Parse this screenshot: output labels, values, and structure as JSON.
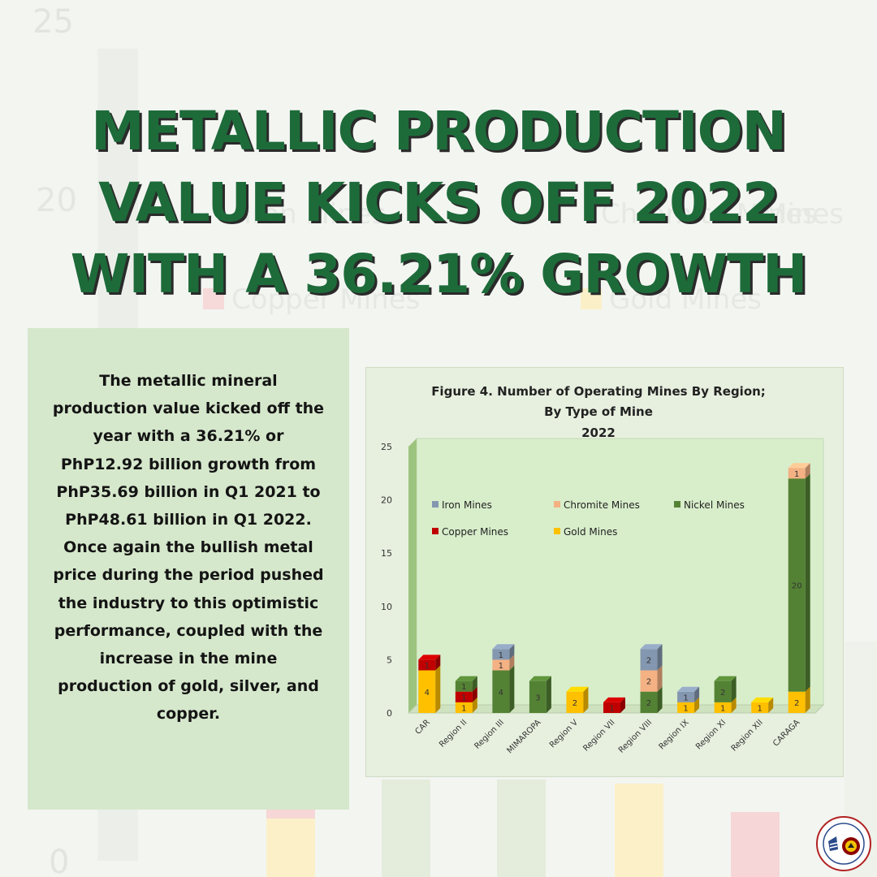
{
  "headline": {
    "line1": "METALLIC PRODUCTION",
    "line2": "VALUE KICKS OFF 2022",
    "line3": "WITH A 36.21% GROWTH"
  },
  "body_text": "The metallic mineral production value kicked off the year with a 36.21% or PhP12.92 billion growth from PhP35.69 billion in Q1 2021 to PhP48.61 billion in Q1 2022. Once again the bullish metal price during the period pushed the industry to this optimistic performance, coupled with the increase in the mine production of gold, silver, and copper.",
  "logo": {
    "icon": "government-seal-icon"
  },
  "chart_data": {
    "type": "bar",
    "stacked": true,
    "title_lines": [
      "Figure 4. Number of Operating Mines By Region;",
      "By Type of Mine",
      "2022"
    ],
    "categories": [
      "CAR",
      "Region II",
      "Region III",
      "MIMAROPA",
      "Region V",
      "Region VII",
      "Region VIII",
      "Region IX",
      "Region XI",
      "Region XII",
      "CARAGA"
    ],
    "ylim": [
      0,
      25
    ],
    "yticks": [
      "0",
      "5",
      "10",
      "15",
      "20",
      "25"
    ],
    "legend_position": "upper-left inside plot",
    "series": [
      {
        "name": "Gold Mines",
        "color": "#ffc000",
        "values": [
          4,
          1,
          0,
          0,
          2,
          0,
          0,
          1,
          1,
          1,
          2
        ],
        "labels": [
          "4",
          "1",
          "",
          "",
          "2",
          "",
          "",
          "1",
          "1",
          "1",
          "2"
        ]
      },
      {
        "name": "Copper Mines",
        "color": "#c00000",
        "values": [
          1,
          1,
          0,
          0,
          0,
          1,
          0,
          0,
          0,
          0,
          0
        ],
        "labels": [
          "1",
          "1",
          "",
          "",
          "",
          "1",
          "",
          "",
          "",
          "",
          ""
        ]
      },
      {
        "name": "Nickel Mines",
        "color": "#548235",
        "values": [
          0,
          1,
          4,
          3,
          0,
          0,
          2,
          0,
          2,
          0,
          20
        ],
        "labels": [
          "",
          "1",
          "4",
          "3",
          "",
          "",
          "2",
          "",
          "2",
          "",
          "20"
        ]
      },
      {
        "name": "Chromite Mines",
        "color": "#f4b183",
        "values": [
          0,
          0,
          1,
          0,
          0,
          0,
          2,
          0,
          0,
          0,
          1
        ],
        "labels": [
          "",
          "",
          "1",
          "",
          "",
          "",
          "2",
          "",
          "",
          "",
          "1"
        ]
      },
      {
        "name": "Iron Mines",
        "color": "#8497b0",
        "values": [
          0,
          0,
          1,
          0,
          0,
          0,
          2,
          1,
          0,
          0,
          0
        ],
        "labels": [
          "",
          "",
          "1",
          "",
          "",
          "",
          "2",
          "1",
          "",
          "",
          ""
        ]
      }
    ],
    "legend_order": [
      "Iron Mines",
      "Chromite Mines",
      "Nickel Mines",
      "Copper Mines",
      "Gold Mines"
    ]
  }
}
